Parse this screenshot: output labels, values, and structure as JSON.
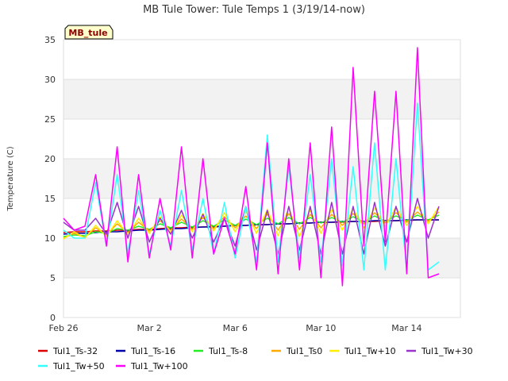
{
  "chart_data": {
    "type": "line",
    "title": "MB Tule Tower: Tule Temps 1 (3/19/14-now)",
    "xlabel": "",
    "ylabel": "Temperature (C)",
    "badge": "MB_tule",
    "x_ticks": [
      "Feb 26",
      "Mar 2",
      "Mar 6",
      "Mar 10",
      "Mar 14"
    ],
    "x_tick_days": [
      0,
      4,
      8,
      12,
      16
    ],
    "xlim": [
      0,
      18.5
    ],
    "ylim": [
      0,
      35
    ],
    "y_ticks": [
      0,
      5,
      10,
      15,
      20,
      25,
      30,
      35
    ],
    "grid": true,
    "legend_position": "bottom",
    "x_days": [
      0.0,
      0.5,
      1.0,
      1.5,
      2.0,
      2.5,
      3.0,
      3.5,
      4.0,
      4.5,
      5.0,
      5.5,
      6.0,
      6.5,
      7.0,
      7.5,
      8.0,
      8.5,
      9.0,
      9.5,
      10.0,
      10.5,
      11.0,
      11.5,
      12.0,
      12.5,
      13.0,
      13.5,
      14.0,
      14.5,
      15.0,
      15.5,
      16.0,
      16.5,
      17.0,
      17.5
    ],
    "series": [
      {
        "name": "Tul1_Ts-32",
        "color": "#dd0000",
        "values": [
          10.7,
          10.8,
          10.8,
          10.9,
          10.9,
          11.0,
          11.0,
          11.1,
          11.1,
          11.2,
          11.3,
          11.3,
          11.4,
          11.4,
          11.5,
          11.5,
          11.6,
          11.6,
          11.7,
          11.7,
          11.8,
          11.8,
          11.9,
          11.9,
          12.0,
          12.0,
          12.0,
          12.1,
          12.1,
          12.1,
          12.2,
          12.2,
          12.2,
          12.3,
          12.3,
          12.3
        ]
      },
      {
        "name": "Tul1_Ts-16",
        "color": "#0000aa",
        "values": [
          10.5,
          10.6,
          10.6,
          10.7,
          10.8,
          10.8,
          10.9,
          11.0,
          11.0,
          11.1,
          11.2,
          11.2,
          11.3,
          11.4,
          11.4,
          11.5,
          11.6,
          11.6,
          11.7,
          11.7,
          11.8,
          11.8,
          11.9,
          11.9,
          12.0,
          12.0,
          12.1,
          12.1,
          12.1,
          12.2,
          12.2,
          12.2,
          12.3,
          12.3,
          12.3,
          12.3
        ]
      },
      {
        "name": "Tul1_Ts-8",
        "color": "#22ee22",
        "values": [
          10.2,
          10.4,
          10.3,
          10.8,
          10.6,
          11.2,
          11.0,
          11.5,
          11.1,
          11.8,
          11.3,
          12.0,
          11.4,
          12.2,
          11.5,
          12.3,
          11.6,
          12.4,
          11.7,
          12.5,
          11.8,
          12.6,
          11.8,
          12.6,
          11.9,
          12.6,
          12.0,
          12.7,
          12.0,
          12.8,
          12.1,
          12.8,
          12.2,
          12.9,
          12.3,
          12.9
        ]
      },
      {
        "name": "Tul1_Ts0",
        "color": "#ffaa00",
        "values": [
          10.0,
          10.6,
          10.1,
          11.3,
          10.4,
          11.8,
          10.7,
          12.0,
          10.9,
          12.2,
          11.0,
          12.4,
          11.1,
          12.6,
          11.2,
          12.7,
          11.3,
          12.8,
          11.2,
          13.0,
          11.0,
          13.1,
          11.1,
          13.0,
          11.3,
          13.0,
          11.6,
          13.1,
          11.8,
          13.2,
          11.9,
          13.2,
          12.0,
          13.3,
          12.1,
          13.3
        ]
      },
      {
        "name": "Tul1_Tw+10",
        "color": "#ffee00",
        "values": [
          9.9,
          10.8,
          10.0,
          11.6,
          10.2,
          12.2,
          10.4,
          12.5,
          10.6,
          12.7,
          10.7,
          12.9,
          10.8,
          13.1,
          10.9,
          13.2,
          10.8,
          13.4,
          10.6,
          13.6,
          10.3,
          13.8,
          10.2,
          13.5,
          10.6,
          13.6,
          11.0,
          13.7,
          11.3,
          13.8,
          11.5,
          13.9,
          11.6,
          14.0,
          11.8,
          14.0
        ]
      },
      {
        "name": "Tul1_Tw+30",
        "color": "#9933cc",
        "values": [
          12.0,
          11.0,
          11.0,
          12.5,
          10.5,
          14.5,
          10.0,
          14.0,
          9.5,
          12.5,
          10.5,
          13.5,
          10.0,
          13.0,
          9.5,
          12.5,
          9.0,
          14.0,
          8.5,
          13.5,
          8.0,
          14.0,
          8.5,
          14.0,
          8.0,
          14.5,
          8.0,
          14.0,
          8.0,
          14.5,
          9.0,
          14.0,
          9.5,
          15.0,
          10.0,
          14.0
        ]
      },
      {
        "name": "Tul1_Tw+50",
        "color": "#33ffff",
        "values": [
          11.0,
          10.0,
          10.0,
          17.0,
          9.0,
          18.0,
          8.0,
          16.0,
          8.0,
          13.5,
          9.0,
          16.0,
          8.5,
          15.0,
          8.0,
          14.5,
          7.5,
          14.0,
          7.0,
          23.0,
          7.0,
          19.0,
          7.5,
          18.0,
          7.0,
          20.0,
          6.5,
          19.0,
          6.0,
          22.0,
          6.0,
          20.0,
          6.0,
          27.0,
          6.0,
          7.0
        ]
      },
      {
        "name": "Tul1_Tw+100",
        "color": "#ff00ff",
        "values": [
          12.5,
          11.0,
          11.5,
          18.0,
          9.0,
          21.5,
          7.0,
          18.0,
          7.5,
          15.0,
          8.5,
          21.5,
          7.5,
          20.0,
          8.0,
          12.5,
          8.0,
          16.5,
          6.0,
          22.0,
          5.5,
          20.0,
          6.0,
          22.0,
          5.0,
          24.0,
          4.0,
          31.5,
          9.0,
          28.5,
          9.5,
          28.5,
          5.5,
          34.0,
          5.0,
          5.5
        ]
      }
    ]
  }
}
